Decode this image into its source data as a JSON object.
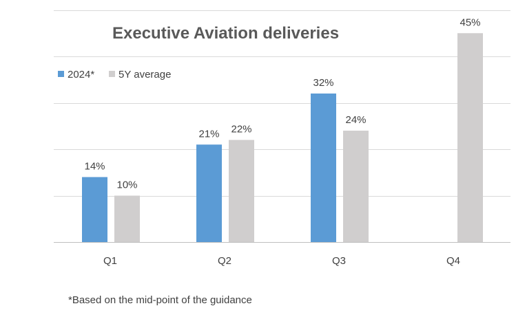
{
  "chart_data": {
    "type": "bar",
    "title": "Executive Aviation deliveries",
    "categories": [
      "Q1",
      "Q2",
      "Q3",
      "Q4"
    ],
    "series": [
      {
        "name": "2024*",
        "color": "#5b9bd5",
        "values": [
          14,
          21,
          32,
          null
        ],
        "labels": [
          "14%",
          "21%",
          "32%",
          null
        ]
      },
      {
        "name": "5Y average",
        "color": "#d0cece",
        "values": [
          10,
          22,
          24,
          45
        ],
        "labels": [
          "10%",
          "22%",
          "24%",
          "45%"
        ]
      }
    ],
    "ylim": [
      0,
      50
    ],
    "y_major_step": 10,
    "grid": true,
    "legend": "top-left",
    "xlabel": "",
    "ylabel": "",
    "footnote": "*Based on the mid-point of the guidance"
  }
}
